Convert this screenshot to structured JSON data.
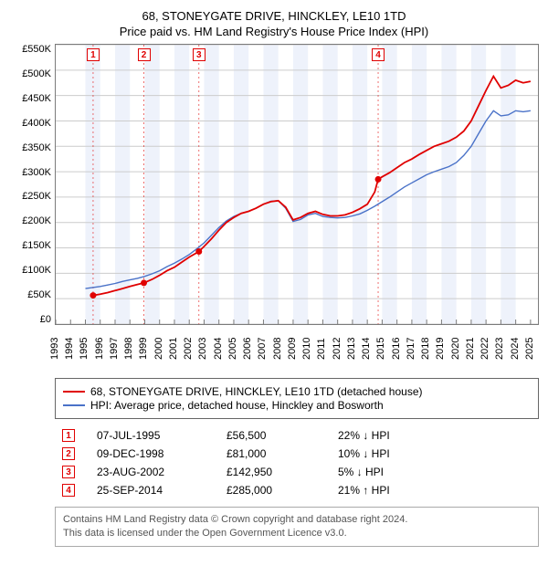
{
  "titles": {
    "line1": "68, STONEYGATE DRIVE, HINCKLEY, LE10 1TD",
    "line2": "Price paid vs. HM Land Registry's House Price Index (HPI)"
  },
  "chart": {
    "type": "line",
    "background_color": "#ffffff",
    "band_color": "#eef2fb",
    "axis_color": "#7b7b7b",
    "grid_color": "#cccccc",
    "x": {
      "min": 1993,
      "max": 2025.5,
      "ticks": [
        1993,
        1994,
        1995,
        1996,
        1997,
        1998,
        1999,
        2000,
        2001,
        2002,
        2003,
        2004,
        2005,
        2006,
        2007,
        2008,
        2009,
        2010,
        2011,
        2012,
        2013,
        2014,
        2015,
        2016,
        2017,
        2018,
        2019,
        2020,
        2021,
        2022,
        2023,
        2024,
        2025
      ]
    },
    "y": {
      "min": 0,
      "max": 550000,
      "tick_step": 50000,
      "labels": [
        "£0",
        "£50K",
        "£100K",
        "£150K",
        "£200K",
        "£250K",
        "£300K",
        "£350K",
        "£400K",
        "£450K",
        "£500K",
        "£550K"
      ]
    },
    "x_bands": [
      [
        1995,
        1996
      ],
      [
        1997,
        1998
      ],
      [
        1999,
        2000
      ],
      [
        2001,
        2002
      ],
      [
        2003,
        2004
      ],
      [
        2005,
        2006
      ],
      [
        2007,
        2008
      ],
      [
        2009,
        2010
      ],
      [
        2011,
        2012
      ],
      [
        2013,
        2014
      ],
      [
        2015,
        2016
      ],
      [
        2017,
        2018
      ],
      [
        2019,
        2020
      ],
      [
        2021,
        2022
      ],
      [
        2023,
        2024
      ]
    ],
    "series": [
      {
        "name": "property",
        "label": "68, STONEYGATE DRIVE, HINCKLEY, LE10 1TD (detached house)",
        "color": "#e00000",
        "width": 1.8,
        "marker_color": "#e00000",
        "marker_radius": 3.5,
        "points": [
          [
            1995.52,
            56500
          ],
          [
            1996.0,
            59000
          ],
          [
            1996.5,
            62000
          ],
          [
            1997.0,
            66000
          ],
          [
            1997.5,
            70000
          ],
          [
            1998.0,
            74000
          ],
          [
            1998.5,
            78000
          ],
          [
            1998.94,
            81000
          ],
          [
            1999.5,
            88000
          ],
          [
            2000.0,
            96000
          ],
          [
            2000.5,
            105000
          ],
          [
            2001.0,
            112000
          ],
          [
            2001.5,
            122000
          ],
          [
            2002.0,
            132000
          ],
          [
            2002.65,
            142950
          ],
          [
            2003.0,
            153000
          ],
          [
            2003.5,
            168000
          ],
          [
            2004.0,
            185000
          ],
          [
            2004.5,
            200000
          ],
          [
            2005.0,
            210000
          ],
          [
            2005.5,
            218000
          ],
          [
            2006.0,
            222000
          ],
          [
            2006.5,
            228000
          ],
          [
            2007.0,
            236000
          ],
          [
            2007.5,
            241000
          ],
          [
            2008.0,
            243000
          ],
          [
            2008.5,
            230000
          ],
          [
            2009.0,
            205000
          ],
          [
            2009.5,
            210000
          ],
          [
            2010.0,
            218000
          ],
          [
            2010.5,
            222000
          ],
          [
            2011.0,
            216000
          ],
          [
            2011.5,
            213000
          ],
          [
            2012.0,
            213000
          ],
          [
            2012.5,
            215000
          ],
          [
            2013.0,
            220000
          ],
          [
            2013.5,
            227000
          ],
          [
            2014.0,
            236000
          ],
          [
            2014.5,
            260000
          ],
          [
            2014.73,
            285000
          ],
          [
            2015.0,
            290000
          ],
          [
            2015.5,
            298000
          ],
          [
            2016.0,
            308000
          ],
          [
            2016.5,
            318000
          ],
          [
            2017.0,
            325000
          ],
          [
            2017.5,
            334000
          ],
          [
            2018.0,
            342000
          ],
          [
            2018.5,
            350000
          ],
          [
            2019.0,
            355000
          ],
          [
            2019.5,
            360000
          ],
          [
            2020.0,
            368000
          ],
          [
            2020.5,
            380000
          ],
          [
            2021.0,
            400000
          ],
          [
            2021.5,
            430000
          ],
          [
            2022.0,
            460000
          ],
          [
            2022.5,
            488000
          ],
          [
            2023.0,
            465000
          ],
          [
            2023.5,
            470000
          ],
          [
            2024.0,
            480000
          ],
          [
            2024.5,
            475000
          ],
          [
            2025.0,
            478000
          ]
        ],
        "markers_at": [
          [
            1995.52,
            56500
          ],
          [
            1998.94,
            81000
          ],
          [
            2002.65,
            142950
          ],
          [
            2014.73,
            285000
          ]
        ]
      },
      {
        "name": "hpi",
        "label": "HPI: Average price, detached house, Hinckley and Bosworth",
        "color": "#4a72c8",
        "width": 1.4,
        "points": [
          [
            1995.0,
            70000
          ],
          [
            1995.5,
            72000
          ],
          [
            1996.0,
            74000
          ],
          [
            1996.5,
            77000
          ],
          [
            1997.0,
            80000
          ],
          [
            1997.5,
            84000
          ],
          [
            1998.0,
            87000
          ],
          [
            1998.5,
            90000
          ],
          [
            1999.0,
            94000
          ],
          [
            1999.5,
            99000
          ],
          [
            2000.0,
            105000
          ],
          [
            2000.5,
            113000
          ],
          [
            2001.0,
            120000
          ],
          [
            2001.5,
            128000
          ],
          [
            2002.0,
            137000
          ],
          [
            2002.5,
            148000
          ],
          [
            2003.0,
            160000
          ],
          [
            2003.5,
            175000
          ],
          [
            2004.0,
            190000
          ],
          [
            2004.5,
            203000
          ],
          [
            2005.0,
            212000
          ],
          [
            2005.5,
            218000
          ],
          [
            2006.0,
            222000
          ],
          [
            2006.5,
            228000
          ],
          [
            2007.0,
            236000
          ],
          [
            2007.5,
            242000
          ],
          [
            2008.0,
            243000
          ],
          [
            2008.5,
            228000
          ],
          [
            2009.0,
            202000
          ],
          [
            2009.5,
            206000
          ],
          [
            2010.0,
            215000
          ],
          [
            2010.5,
            218000
          ],
          [
            2011.0,
            212000
          ],
          [
            2011.5,
            210000
          ],
          [
            2012.0,
            209000
          ],
          [
            2012.5,
            210000
          ],
          [
            2013.0,
            213000
          ],
          [
            2013.5,
            217000
          ],
          [
            2014.0,
            224000
          ],
          [
            2014.5,
            232000
          ],
          [
            2015.0,
            241000
          ],
          [
            2015.5,
            250000
          ],
          [
            2016.0,
            260000
          ],
          [
            2016.5,
            270000
          ],
          [
            2017.0,
            278000
          ],
          [
            2017.5,
            286000
          ],
          [
            2018.0,
            294000
          ],
          [
            2018.5,
            300000
          ],
          [
            2019.0,
            305000
          ],
          [
            2019.5,
            310000
          ],
          [
            2020.0,
            318000
          ],
          [
            2020.5,
            332000
          ],
          [
            2021.0,
            350000
          ],
          [
            2021.5,
            375000
          ],
          [
            2022.0,
            400000
          ],
          [
            2022.5,
            420000
          ],
          [
            2023.0,
            410000
          ],
          [
            2023.5,
            412000
          ],
          [
            2024.0,
            420000
          ],
          [
            2024.5,
            418000
          ],
          [
            2025.0,
            420000
          ]
        ]
      }
    ],
    "callouts": [
      {
        "n": "1",
        "x": 1995.52
      },
      {
        "n": "2",
        "x": 1998.94
      },
      {
        "n": "3",
        "x": 2002.65
      },
      {
        "n": "4",
        "x": 2014.73
      }
    ]
  },
  "transactions": [
    {
      "n": "1",
      "date": "07-JUL-1995",
      "price": "£56,500",
      "diff": "22% ↓ HPI"
    },
    {
      "n": "2",
      "date": "09-DEC-1998",
      "price": "£81,000",
      "diff": "10% ↓ HPI"
    },
    {
      "n": "3",
      "date": "23-AUG-2002",
      "price": "£142,950",
      "diff": "5% ↓ HPI"
    },
    {
      "n": "4",
      "date": "25-SEP-2014",
      "price": "£285,000",
      "diff": "21% ↑ HPI"
    }
  ],
  "attribution": {
    "line1": "Contains HM Land Registry data © Crown copyright and database right 2024.",
    "line2": "This data is licensed under the Open Government Licence v3.0."
  }
}
